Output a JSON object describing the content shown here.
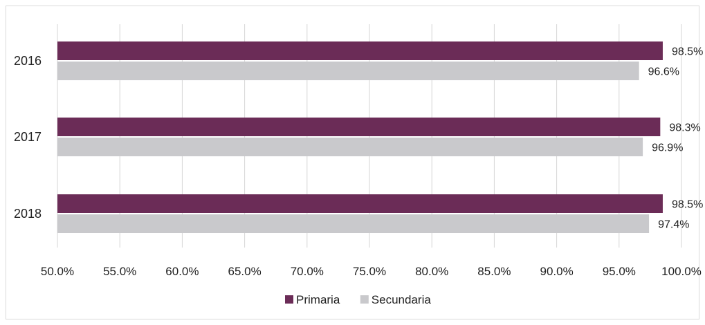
{
  "chart_data": {
    "type": "bar",
    "orientation": "horizontal",
    "categories": [
      "2016",
      "2017",
      "2018"
    ],
    "series": [
      {
        "name": "Primaria",
        "values": [
          98.5,
          98.3,
          98.5
        ],
        "labels": [
          "98.5%",
          "98.3%",
          "98.5%"
        ],
        "color": "#6b2c57"
      },
      {
        "name": "Secundaria",
        "values": [
          96.6,
          96.9,
          97.4
        ],
        "labels": [
          "96.6%",
          "96.9%",
          "97.4%"
        ],
        "color": "#c9c9cc"
      }
    ],
    "xlim": [
      50,
      100
    ],
    "xticks": [
      50,
      55,
      60,
      65,
      70,
      75,
      80,
      85,
      90,
      95,
      100
    ],
    "xtick_labels": [
      "50.0%",
      "55.0%",
      "60.0%",
      "65.0%",
      "70.0%",
      "75.0%",
      "80.0%",
      "85.0%",
      "90.0%",
      "95.0%",
      "100.0%"
    ],
    "grid": "vertical",
    "legend": "bottom-center",
    "title": "",
    "xlabel": "",
    "ylabel": ""
  }
}
